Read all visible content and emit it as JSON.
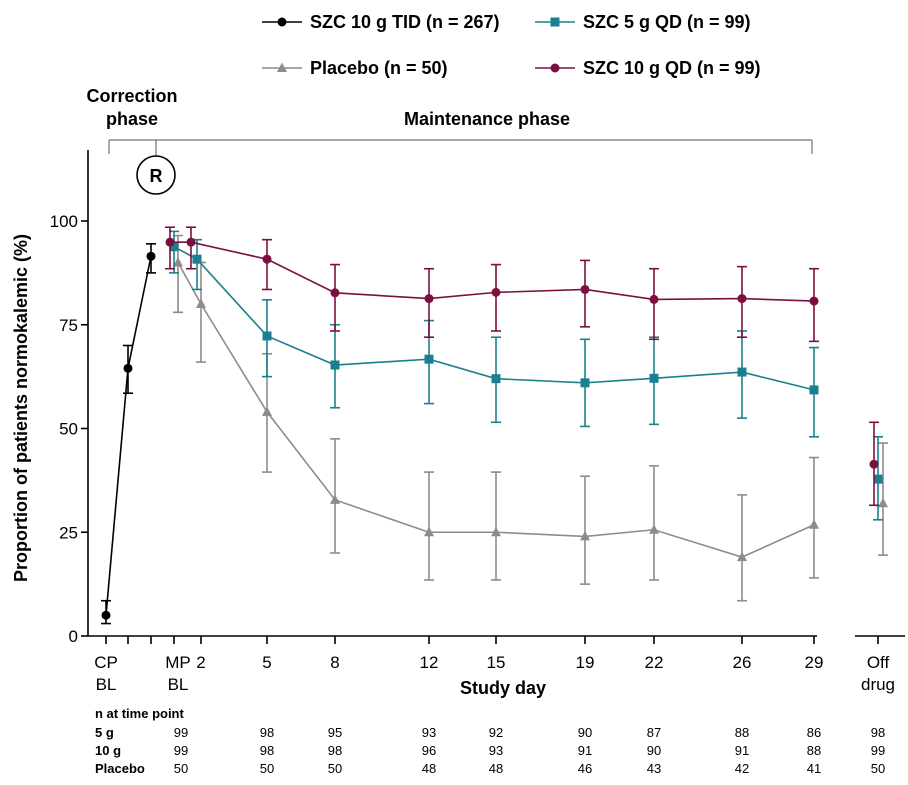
{
  "chart_data": {
    "type": "line",
    "xlabel": "Study day",
    "ylabel": "Proportion of patients normokalemic (%)",
    "ylim": [
      0,
      115
    ],
    "y_ticks": [
      0,
      25,
      50,
      75,
      100
    ],
    "x_ticks": [
      {
        "key": "cp",
        "lines": [
          "CP",
          "BL"
        ]
      },
      {
        "key": "cp2",
        "lines": []
      },
      {
        "key": "cp3",
        "lines": []
      },
      {
        "key": "mpbl",
        "lines": [
          "MP",
          "BL"
        ]
      },
      {
        "key": "d2",
        "lines": [
          "2"
        ]
      },
      {
        "key": "d5",
        "lines": [
          "5"
        ]
      },
      {
        "key": "d8",
        "lines": [
          "8"
        ]
      },
      {
        "key": "d12",
        "lines": [
          "12"
        ]
      },
      {
        "key": "d15",
        "lines": [
          "15"
        ]
      },
      {
        "key": "d19",
        "lines": [
          "19"
        ]
      },
      {
        "key": "d22",
        "lines": [
          "22"
        ]
      },
      {
        "key": "d26",
        "lines": [
          "26"
        ]
      },
      {
        "key": "d29",
        "lines": [
          "29"
        ]
      },
      {
        "key": "off",
        "lines": [
          "Off",
          "drug"
        ]
      }
    ],
    "phases": {
      "correction": "Correction phase",
      "maintenance": "Maintenance phase",
      "randomization_marker": "R"
    },
    "series": [
      {
        "name": "SZC 10 g TID (n = 267)",
        "color": "#000000",
        "marker": "circle",
        "points": [
          {
            "x": "cp",
            "y": 5,
            "lo": 3,
            "hi": 8.5
          },
          {
            "x": "cp2",
            "y": 64.5,
            "lo": 58.5,
            "hi": 70
          },
          {
            "x": "cp3",
            "y": 91.5,
            "lo": 87.5,
            "hi": 94.5
          }
        ]
      },
      {
        "name": "SZC 5 g QD (n = 99)",
        "color": "#1a8090",
        "marker": "square",
        "points": [
          {
            "x": "mpbl",
            "y": 93.8,
            "lo": 87.5,
            "hi": 97.5
          },
          {
            "x": "d2",
            "y": 90.8,
            "lo": 83.5,
            "hi": 95.5
          },
          {
            "x": "d5",
            "y": 72.3,
            "lo": 62.5,
            "hi": 81
          },
          {
            "x": "d8",
            "y": 65.3,
            "lo": 55,
            "hi": 75
          },
          {
            "x": "d12",
            "y": 66.7,
            "lo": 56,
            "hi": 76
          },
          {
            "x": "d15",
            "y": 62,
            "lo": 51.5,
            "hi": 72
          },
          {
            "x": "d19",
            "y": 61,
            "lo": 50.5,
            "hi": 71.5
          },
          {
            "x": "d22",
            "y": 62.1,
            "lo": 51,
            "hi": 72
          },
          {
            "x": "d26",
            "y": 63.6,
            "lo": 52.5,
            "hi": 73.5
          },
          {
            "x": "d29",
            "y": 59.3,
            "lo": 48,
            "hi": 69.5
          },
          {
            "x": "off",
            "y": 37.8,
            "lo": 28,
            "hi": 48
          }
        ]
      },
      {
        "name": "Placebo (n = 50)",
        "color": "#8c8c8c",
        "marker": "triangle",
        "points": [
          {
            "x": "mpbl",
            "y": 90,
            "lo": 78,
            "hi": 96.5
          },
          {
            "x": "d2",
            "y": 80,
            "lo": 66,
            "hi": 90
          },
          {
            "x": "d5",
            "y": 54,
            "lo": 39.5,
            "hi": 68
          },
          {
            "x": "d8",
            "y": 32.8,
            "lo": 20,
            "hi": 47.5
          },
          {
            "x": "d12",
            "y": 25,
            "lo": 13.5,
            "hi": 39.5
          },
          {
            "x": "d15",
            "y": 25,
            "lo": 13.5,
            "hi": 39.5
          },
          {
            "x": "d19",
            "y": 24,
            "lo": 12.5,
            "hi": 38.5
          },
          {
            "x": "d22",
            "y": 25.6,
            "lo": 13.5,
            "hi": 41
          },
          {
            "x": "d26",
            "y": 19,
            "lo": 8.5,
            "hi": 34
          },
          {
            "x": "d29",
            "y": 26.8,
            "lo": 14,
            "hi": 43
          },
          {
            "x": "off",
            "y": 32,
            "lo": 19.5,
            "hi": 46.5
          }
        ]
      },
      {
        "name": "SZC 10 g QD (n = 99)",
        "color": "#7b1040",
        "marker": "circle",
        "points": [
          {
            "x": "mpbl",
            "y": 94.9,
            "lo": 88.5,
            "hi": 98.5
          },
          {
            "x": "d2",
            "y": 94.9,
            "lo": 88.5,
            "hi": 98.5
          },
          {
            "x": "d5",
            "y": 90.8,
            "lo": 83.5,
            "hi": 95.5
          },
          {
            "x": "d8",
            "y": 82.7,
            "lo": 73.5,
            "hi": 89.5
          },
          {
            "x": "d12",
            "y": 81.3,
            "lo": 72,
            "hi": 88.5
          },
          {
            "x": "d15",
            "y": 82.8,
            "lo": 73.5,
            "hi": 89.5
          },
          {
            "x": "d19",
            "y": 83.5,
            "lo": 74.5,
            "hi": 90.5
          },
          {
            "x": "d22",
            "y": 81.1,
            "lo": 71.5,
            "hi": 88.5
          },
          {
            "x": "d26",
            "y": 81.3,
            "lo": 72,
            "hi": 89
          },
          {
            "x": "d29",
            "y": 80.7,
            "lo": 71,
            "hi": 88.5
          },
          {
            "x": "off",
            "y": 41.4,
            "lo": 31.5,
            "hi": 51.5
          }
        ]
      }
    ],
    "n_table": {
      "title": "n at time point",
      "columns": [
        "mpbl",
        "d5",
        "d8",
        "d12",
        "d15",
        "d19",
        "d22",
        "d26",
        "d29",
        "off"
      ],
      "rows": [
        {
          "label": "5 g",
          "values": [
            "99",
            "98",
            "95",
            "93",
            "92",
            "90",
            "87",
            "88",
            "86",
            "98"
          ]
        },
        {
          "label": "10 g",
          "values": [
            "99",
            "98",
            "98",
            "96",
            "93",
            "91",
            "90",
            "91",
            "88",
            "99"
          ]
        },
        {
          "label": "Placebo",
          "values": [
            "50",
            "50",
            "50",
            "48",
            "48",
            "46",
            "43",
            "42",
            "41",
            "50"
          ]
        }
      ]
    }
  }
}
